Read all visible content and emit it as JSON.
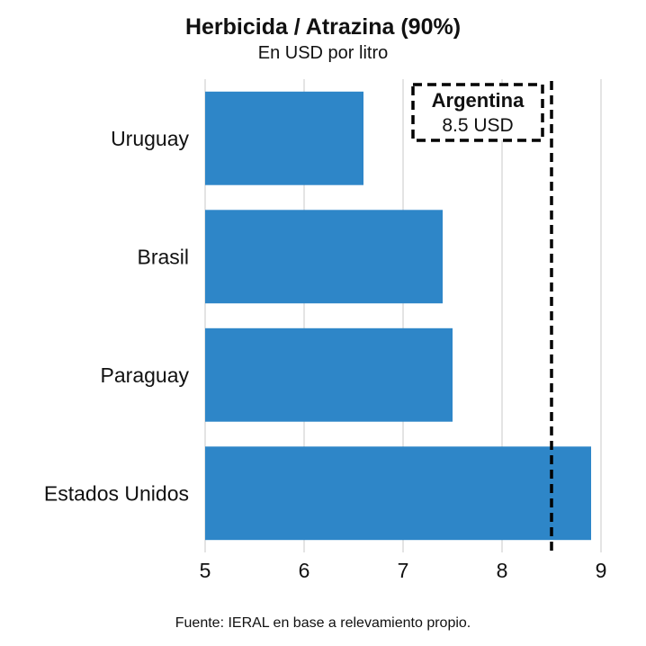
{
  "chart_data": {
    "type": "bar",
    "orientation": "horizontal",
    "title": "Herbicida / Atrazina (90%)",
    "subtitle": "En USD por litro",
    "categories": [
      "Uruguay",
      "Brasil",
      "Paraguay",
      "Estados Unidos"
    ],
    "values": [
      6.6,
      7.4,
      7.5,
      8.9
    ],
    "xlim": [
      5,
      9
    ],
    "xticks": [
      "5",
      "6",
      "7",
      "8",
      "9"
    ],
    "grid": true,
    "bar_color": "#2e86c8",
    "reference_line": {
      "value": 8.5,
      "label": "Argentina",
      "value_label": "8.5 USD",
      "style": "dashed"
    }
  },
  "source": "Fuente: IERAL en base a relevamiento propio."
}
